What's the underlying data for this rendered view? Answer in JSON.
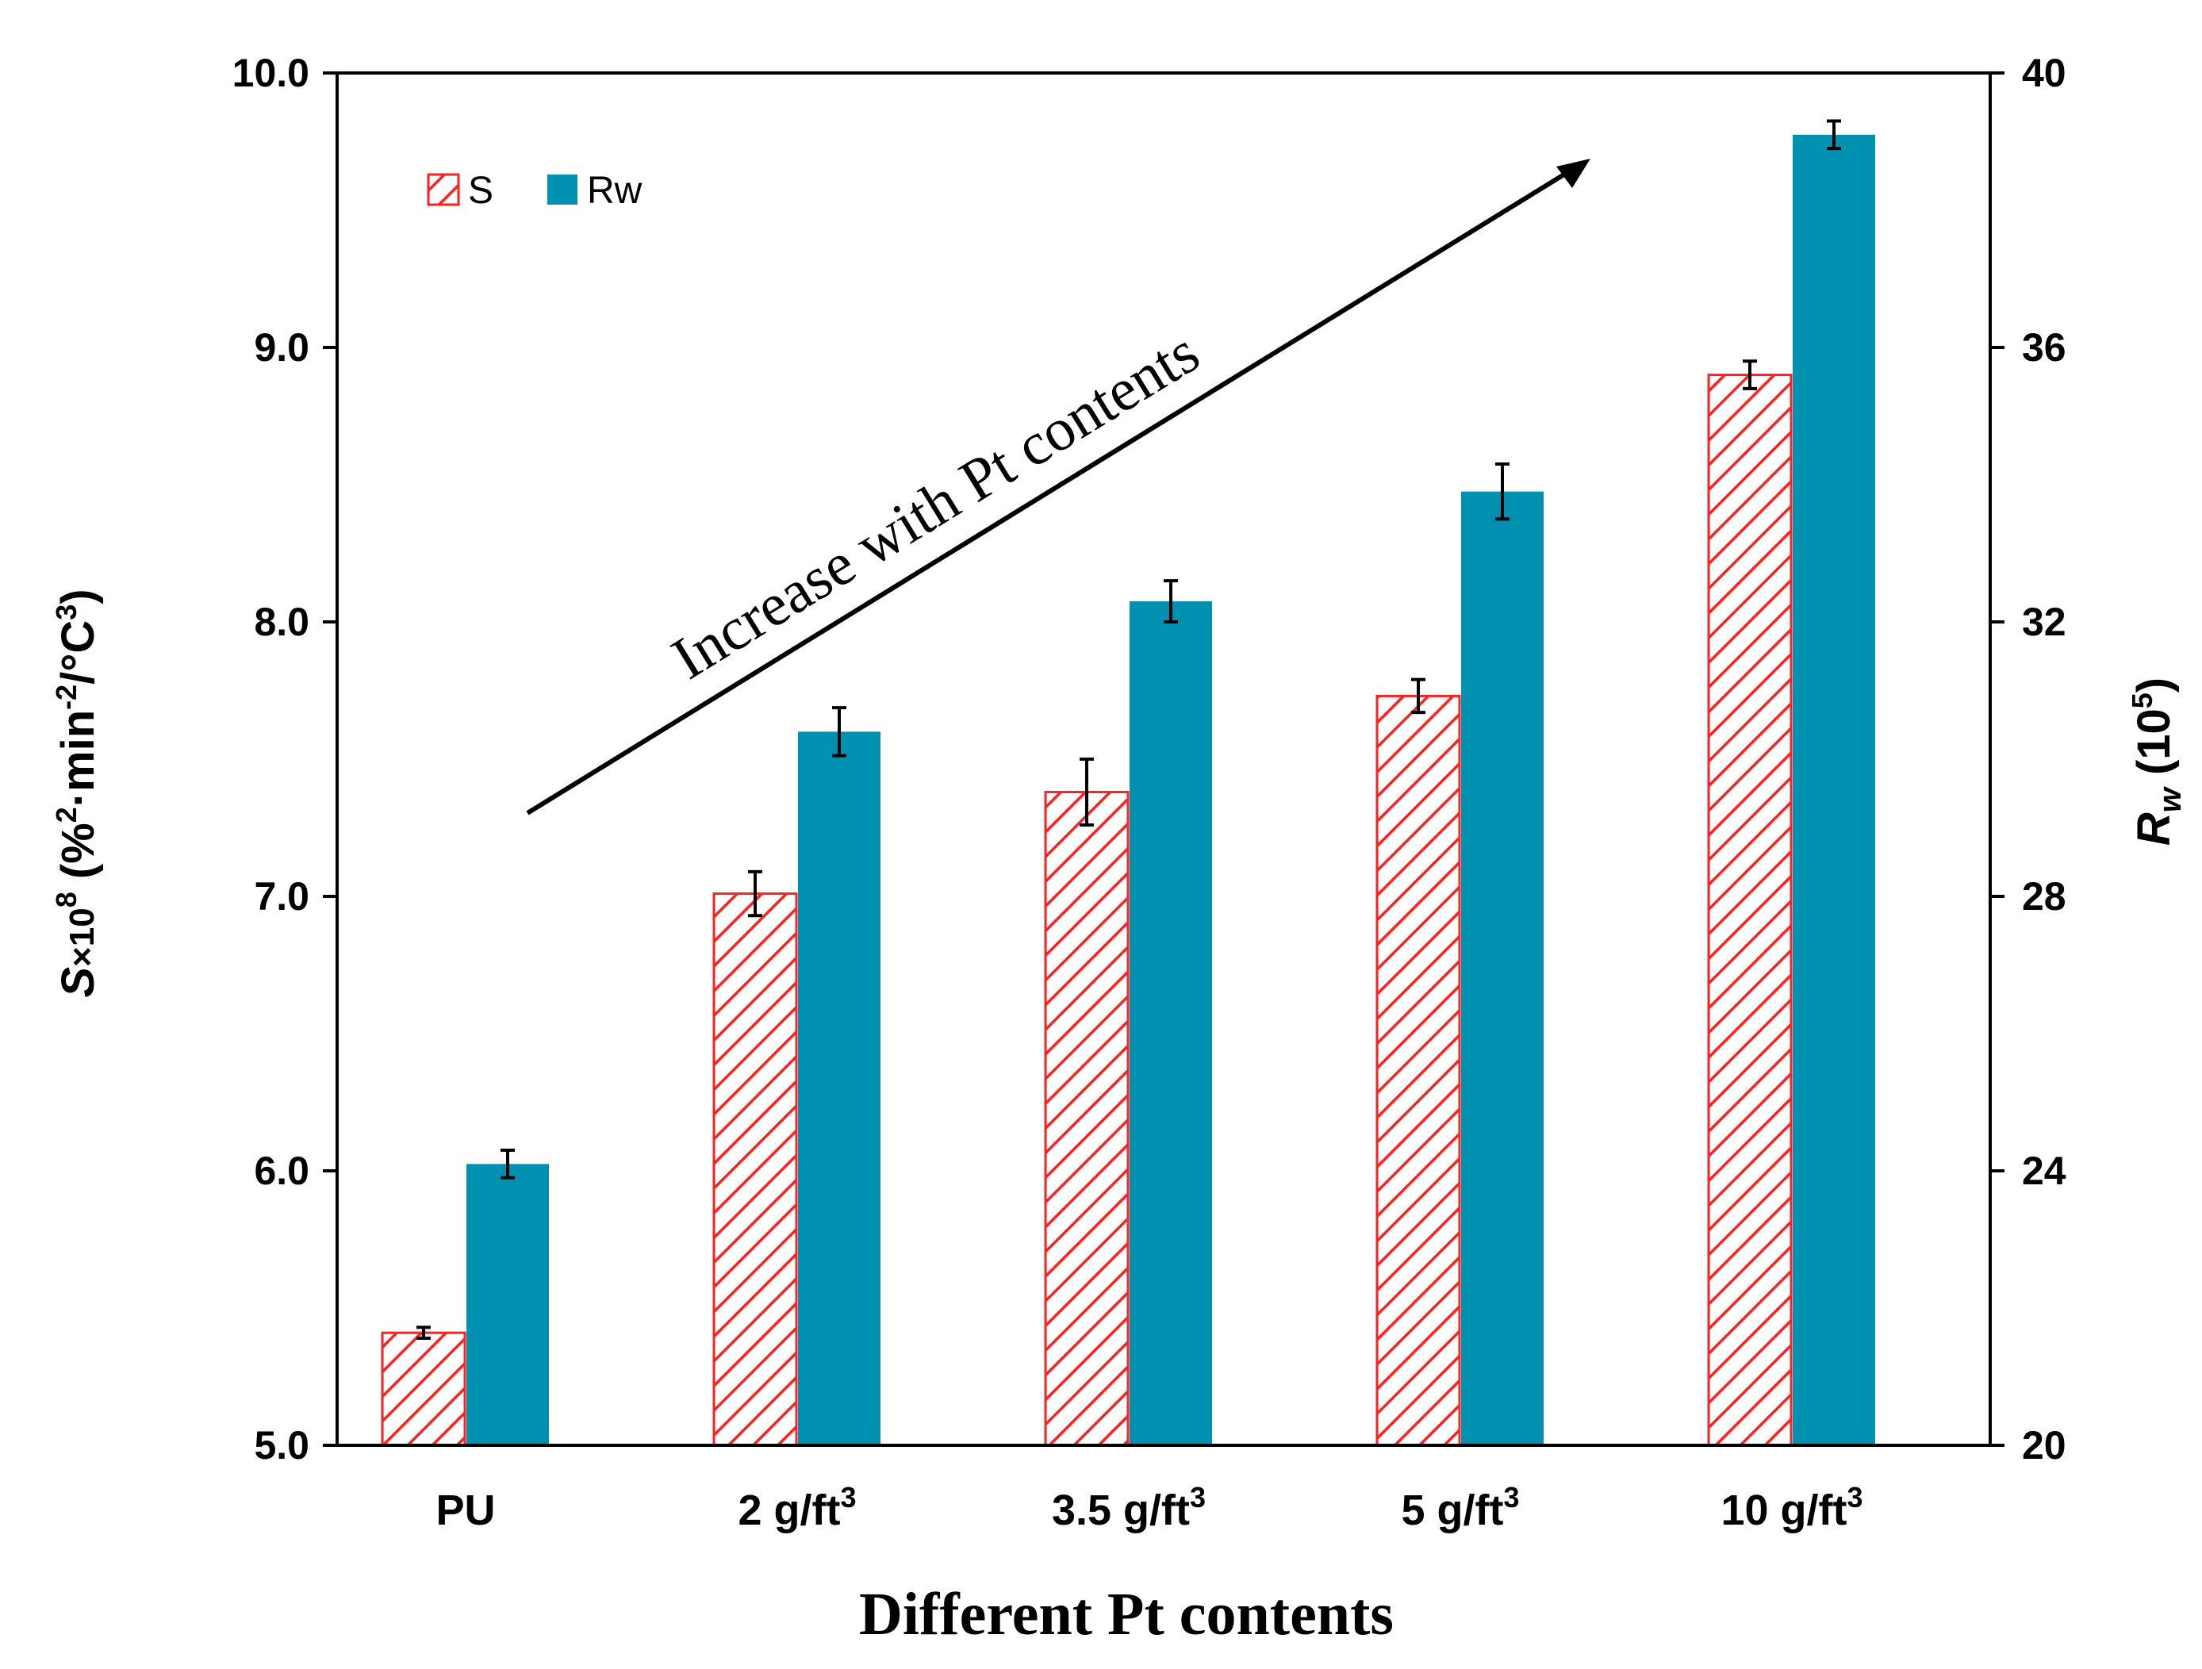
{
  "chart_data": {
    "type": "bar",
    "categories": [
      "PU",
      "2 g/ft",
      "3.5 g/ft",
      "5 g/ft",
      "10 g/ft"
    ],
    "category_superscripts": [
      "",
      "3",
      "3",
      "3",
      "3"
    ],
    "series": [
      {
        "name": "S",
        "axis": "left",
        "values": [
          5.41,
          7.01,
          7.38,
          7.73,
          8.9
        ],
        "errors": [
          0.02,
          0.08,
          0.12,
          0.06,
          0.05
        ],
        "color": "#ff0000",
        "pattern": "diagonal-hatch"
      },
      {
        "name": "Rw",
        "axis": "right",
        "values": [
          24.1,
          30.4,
          32.3,
          33.9,
          39.1
        ],
        "errors": [
          0.2,
          0.35,
          0.3,
          0.4,
          0.2
        ],
        "color": "#0090b0",
        "pattern": "solid"
      }
    ],
    "y_left": {
      "ylim": [
        5.0,
        10.0
      ],
      "ticks": [
        "5.0",
        "6.0",
        "7.0",
        "8.0",
        "9.0",
        "10.0"
      ],
      "label_parts": [
        "S",
        "×10",
        "8",
        " (%",
        "2",
        "·min",
        "-2",
        "/°C",
        "3",
        ")"
      ]
    },
    "y_right": {
      "ylim": [
        20,
        40
      ],
      "ticks": [
        "20",
        "24",
        "28",
        "32",
        "36",
        "40"
      ],
      "label_parts": [
        "R",
        "w",
        " (10",
        "5",
        ")"
      ]
    },
    "xlabel": "Different Pt contents",
    "annotation": "Increase with Pt contents",
    "legend": {
      "position": "top-left",
      "entries": [
        "S",
        "Rw"
      ]
    },
    "grid": false
  }
}
